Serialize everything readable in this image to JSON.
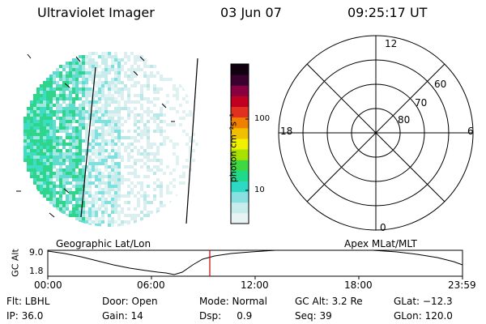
{
  "header": {
    "title": "Ultraviolet Imager",
    "date": "03 Jun 07",
    "time": "09:25:17 UT"
  },
  "colorbar": {
    "label": "photon cm⁻²s⁻¹",
    "ticks": [
      "100",
      "10"
    ],
    "colors": [
      "#e6f4f4",
      "#c8ecec",
      "#88e0e0",
      "#2dd8c4",
      "#20d98a",
      "#40d840",
      "#a8e000",
      "#f0f000",
      "#f0c000",
      "#f08000",
      "#e03020",
      "#c00020",
      "#880040",
      "#3a0030",
      "#100010"
    ]
  },
  "polar": {
    "mlt_labels": {
      "top": "12",
      "left": "18",
      "right": "6",
      "bottom": "0"
    },
    "lat_labels": [
      "60",
      "70",
      "80"
    ]
  },
  "timeline": {
    "left_title": "Geographic Lat/Lon",
    "right_title": "Apex  MLat/MLT",
    "axis_label": "GC Alt",
    "y_max": "9.0",
    "y_min": "1.8",
    "x_ticks": [
      "00:00",
      "06:00",
      "12:00",
      "18:00",
      "23:59"
    ],
    "marker_color": "#cc0000"
  },
  "info": {
    "flt": "Flt: LBHL",
    "ip": "IP: 36.0",
    "door": "Door: Open",
    "gain": "Gain: 14",
    "mode": "Mode: Normal",
    "dsp": "Dsp:     0.9",
    "gcalt": "GC Alt: 3.2 Re",
    "seq": "Seq: 39",
    "glat": "GLat: −12.3",
    "glon": "GLon: 120.0"
  }
}
